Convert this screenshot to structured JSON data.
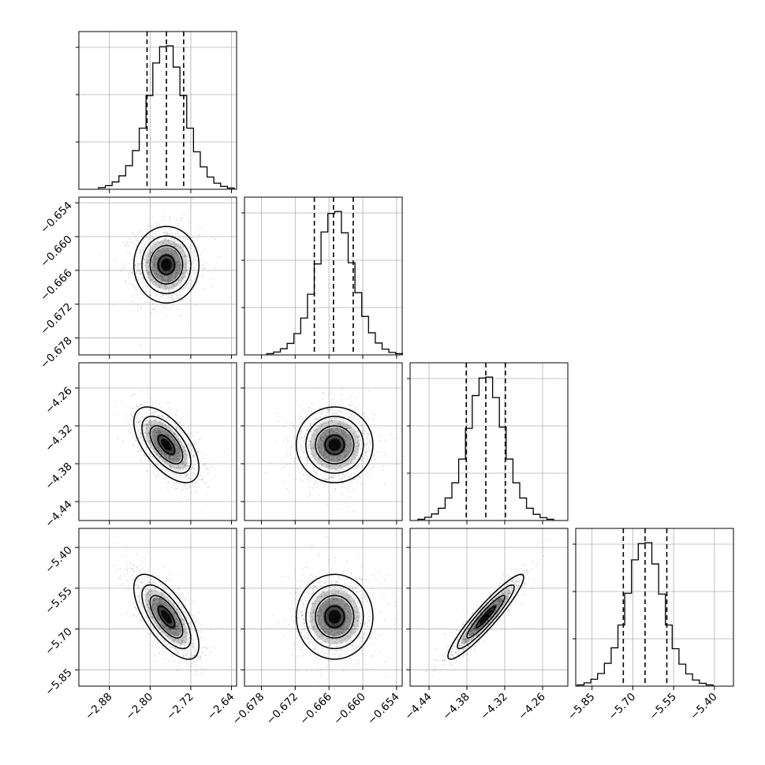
{
  "chart_data": {
    "type": "corner",
    "grid": true,
    "parameters": [
      {
        "center": -2.768,
        "sd": 0.032,
        "quantiles": [
          -2.806,
          -2.768,
          -2.734
        ],
        "range": [
          -2.94,
          -2.63
        ],
        "ticks": [
          -2.88,
          -2.8,
          -2.72,
          -2.64
        ],
        "tick_labels": [
          "−2.88",
          "−2.80",
          "−2.72",
          "−2.64"
        ]
      },
      {
        "center": -0.665,
        "sd": 0.0034,
        "quantiles": [
          -0.6686,
          -0.6652,
          -0.6617
        ],
        "range": [
          -0.681,
          -0.653
        ],
        "ticks": [
          -0.678,
          -0.672,
          -0.666,
          -0.66,
          -0.654
        ],
        "tick_labels": [
          "−0.678",
          "−0.672",
          "−0.666",
          "−0.660",
          "−0.654"
        ]
      },
      {
        "center": -4.35,
        "sd": 0.03,
        "quantiles": [
          -4.381,
          -4.35,
          -4.319
        ],
        "range": [
          -4.47,
          -4.22
        ],
        "ticks": [
          -4.44,
          -4.38,
          -4.32,
          -4.26
        ],
        "tick_labels": [
          "−4.44",
          "−4.38",
          "−4.32",
          "−4.26"
        ]
      },
      {
        "center": -5.655,
        "sd": 0.078,
        "quantiles": [
          -5.735,
          -5.655,
          -5.575
        ],
        "range": [
          -5.91,
          -5.33
        ],
        "ticks": [
          -5.85,
          -5.7,
          -5.55,
          -5.4
        ],
        "tick_labels": [
          "−5.85",
          "−5.70",
          "−5.55",
          "−5.40"
        ]
      }
    ],
    "histograms": [
      {
        "bins": 20,
        "counts": [
          4,
          9,
          18,
          33,
          58,
          95,
          150,
          230,
          310,
          350,
          352,
          300,
          230,
          150,
          92,
          55,
          30,
          15,
          7,
          3
        ]
      },
      {
        "bins": 20,
        "counts": [
          3,
          7,
          15,
          28,
          52,
          90,
          148,
          222,
          300,
          345,
          350,
          298,
          225,
          152,
          94,
          54,
          29,
          14,
          6,
          3
        ]
      },
      {
        "bins": 20,
        "counts": [
          3,
          8,
          16,
          30,
          55,
          92,
          150,
          225,
          305,
          348,
          350,
          300,
          228,
          150,
          92,
          55,
          30,
          15,
          7,
          3
        ]
      },
      {
        "bins": 20,
        "counts": [
          3,
          8,
          17,
          31,
          56,
          94,
          150,
          228,
          310,
          350,
          352,
          300,
          226,
          150,
          92,
          54,
          30,
          15,
          7,
          3
        ]
      }
    ],
    "correlations": [
      {
        "params": [
          0,
          1
        ],
        "rho": 0.0
      },
      {
        "params": [
          0,
          2
        ],
        "rho": -0.6
      },
      {
        "params": [
          1,
          2
        ],
        "rho": 0.0
      },
      {
        "params": [
          0,
          3
        ],
        "rho": -0.68
      },
      {
        "params": [
          1,
          3
        ],
        "rho": 0.0
      },
      {
        "params": [
          2,
          3
        ],
        "rho": 0.93
      }
    ],
    "contour_levels_sigma": [
      0.5,
      1.0,
      1.5,
      2.0
    ],
    "samples_per_panel": 1400
  }
}
